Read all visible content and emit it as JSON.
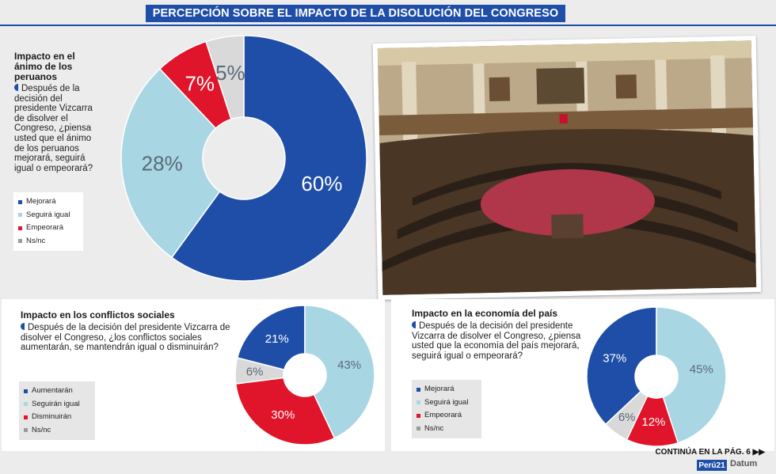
{
  "header": {
    "title": "PERCEPCIÓN SOBRE EL IMPACTO DE LA DISOLUCIÓN DEL CONGRESO"
  },
  "chart_data": [
    {
      "type": "pie",
      "title": "Impacto en el ánimo de los peruanos",
      "question": "Después de la decisión del presidente Vizcarra de disolver el Congreso, ¿piensa usted que el ánimo de los peruanos mejorará, seguirá igual o empeorará?",
      "categories": [
        "Mejorará",
        "Seguirá igual",
        "Empeorará",
        "Ns/nc"
      ],
      "values": [
        60,
        28,
        7,
        5
      ],
      "labels": [
        "60%",
        "28%",
        "7%",
        "5%"
      ],
      "colors": [
        "#1f4ea8",
        "#a9d6e3",
        "#e0142a",
        "#d9d9d9"
      ],
      "label_colors": [
        "#ffffff",
        "#5a6a78",
        "#ffffff",
        "#5a6a78"
      ],
      "start_angle": 0,
      "legend_placement": "bottom-left"
    },
    {
      "type": "pie",
      "title": "Impacto en los conflictos sociales",
      "question": "Después de la decisión del presidente Vizcarra de disolver el Congreso, ¿los conflictos sociales aumentarán, se mantendrán igual o disminuirán?",
      "categories": [
        "Aumentarán",
        "Seguirán igual",
        "Disminuirán",
        "Ns/nc"
      ],
      "values": [
        21,
        43,
        30,
        6
      ],
      "labels": [
        "21%",
        "43%",
        "30%",
        "6%"
      ],
      "colors": [
        "#1f4ea8",
        "#a9d6e3",
        "#e0142a",
        "#d9d9d9"
      ],
      "label_colors": [
        "#ffffff",
        "#5a6a78",
        "#ffffff",
        "#5a6a78"
      ],
      "start_angle": -75.6,
      "legend_placement": "bottom-left"
    },
    {
      "type": "pie",
      "title": "Impacto en la economía del país",
      "question": "Después de la decisión del presidente Vizcarra de disolver el Congreso, ¿piensa usted que la economía del país mejorará, seguirá igual o empeorará?",
      "categories": [
        "Mejorará",
        "Seguirá igual",
        "Empeorará",
        "Ns/nc"
      ],
      "values": [
        37,
        45,
        12,
        6
      ],
      "labels": [
        "37%",
        "45%",
        "12%",
        "6%"
      ],
      "colors": [
        "#1f4ea8",
        "#a9d6e3",
        "#e0142a",
        "#d9d9d9"
      ],
      "label_colors": [
        "#ffffff",
        "#5a6a78",
        "#ffffff",
        "#5a6a78"
      ],
      "start_angle": -133.2,
      "legend_placement": "bottom-left"
    }
  ],
  "footer": {
    "continued": "CONTINÚA EN LA PÁG. 6 ▶▶",
    "logo_left": "Perú21",
    "logo_right": "Datum"
  }
}
